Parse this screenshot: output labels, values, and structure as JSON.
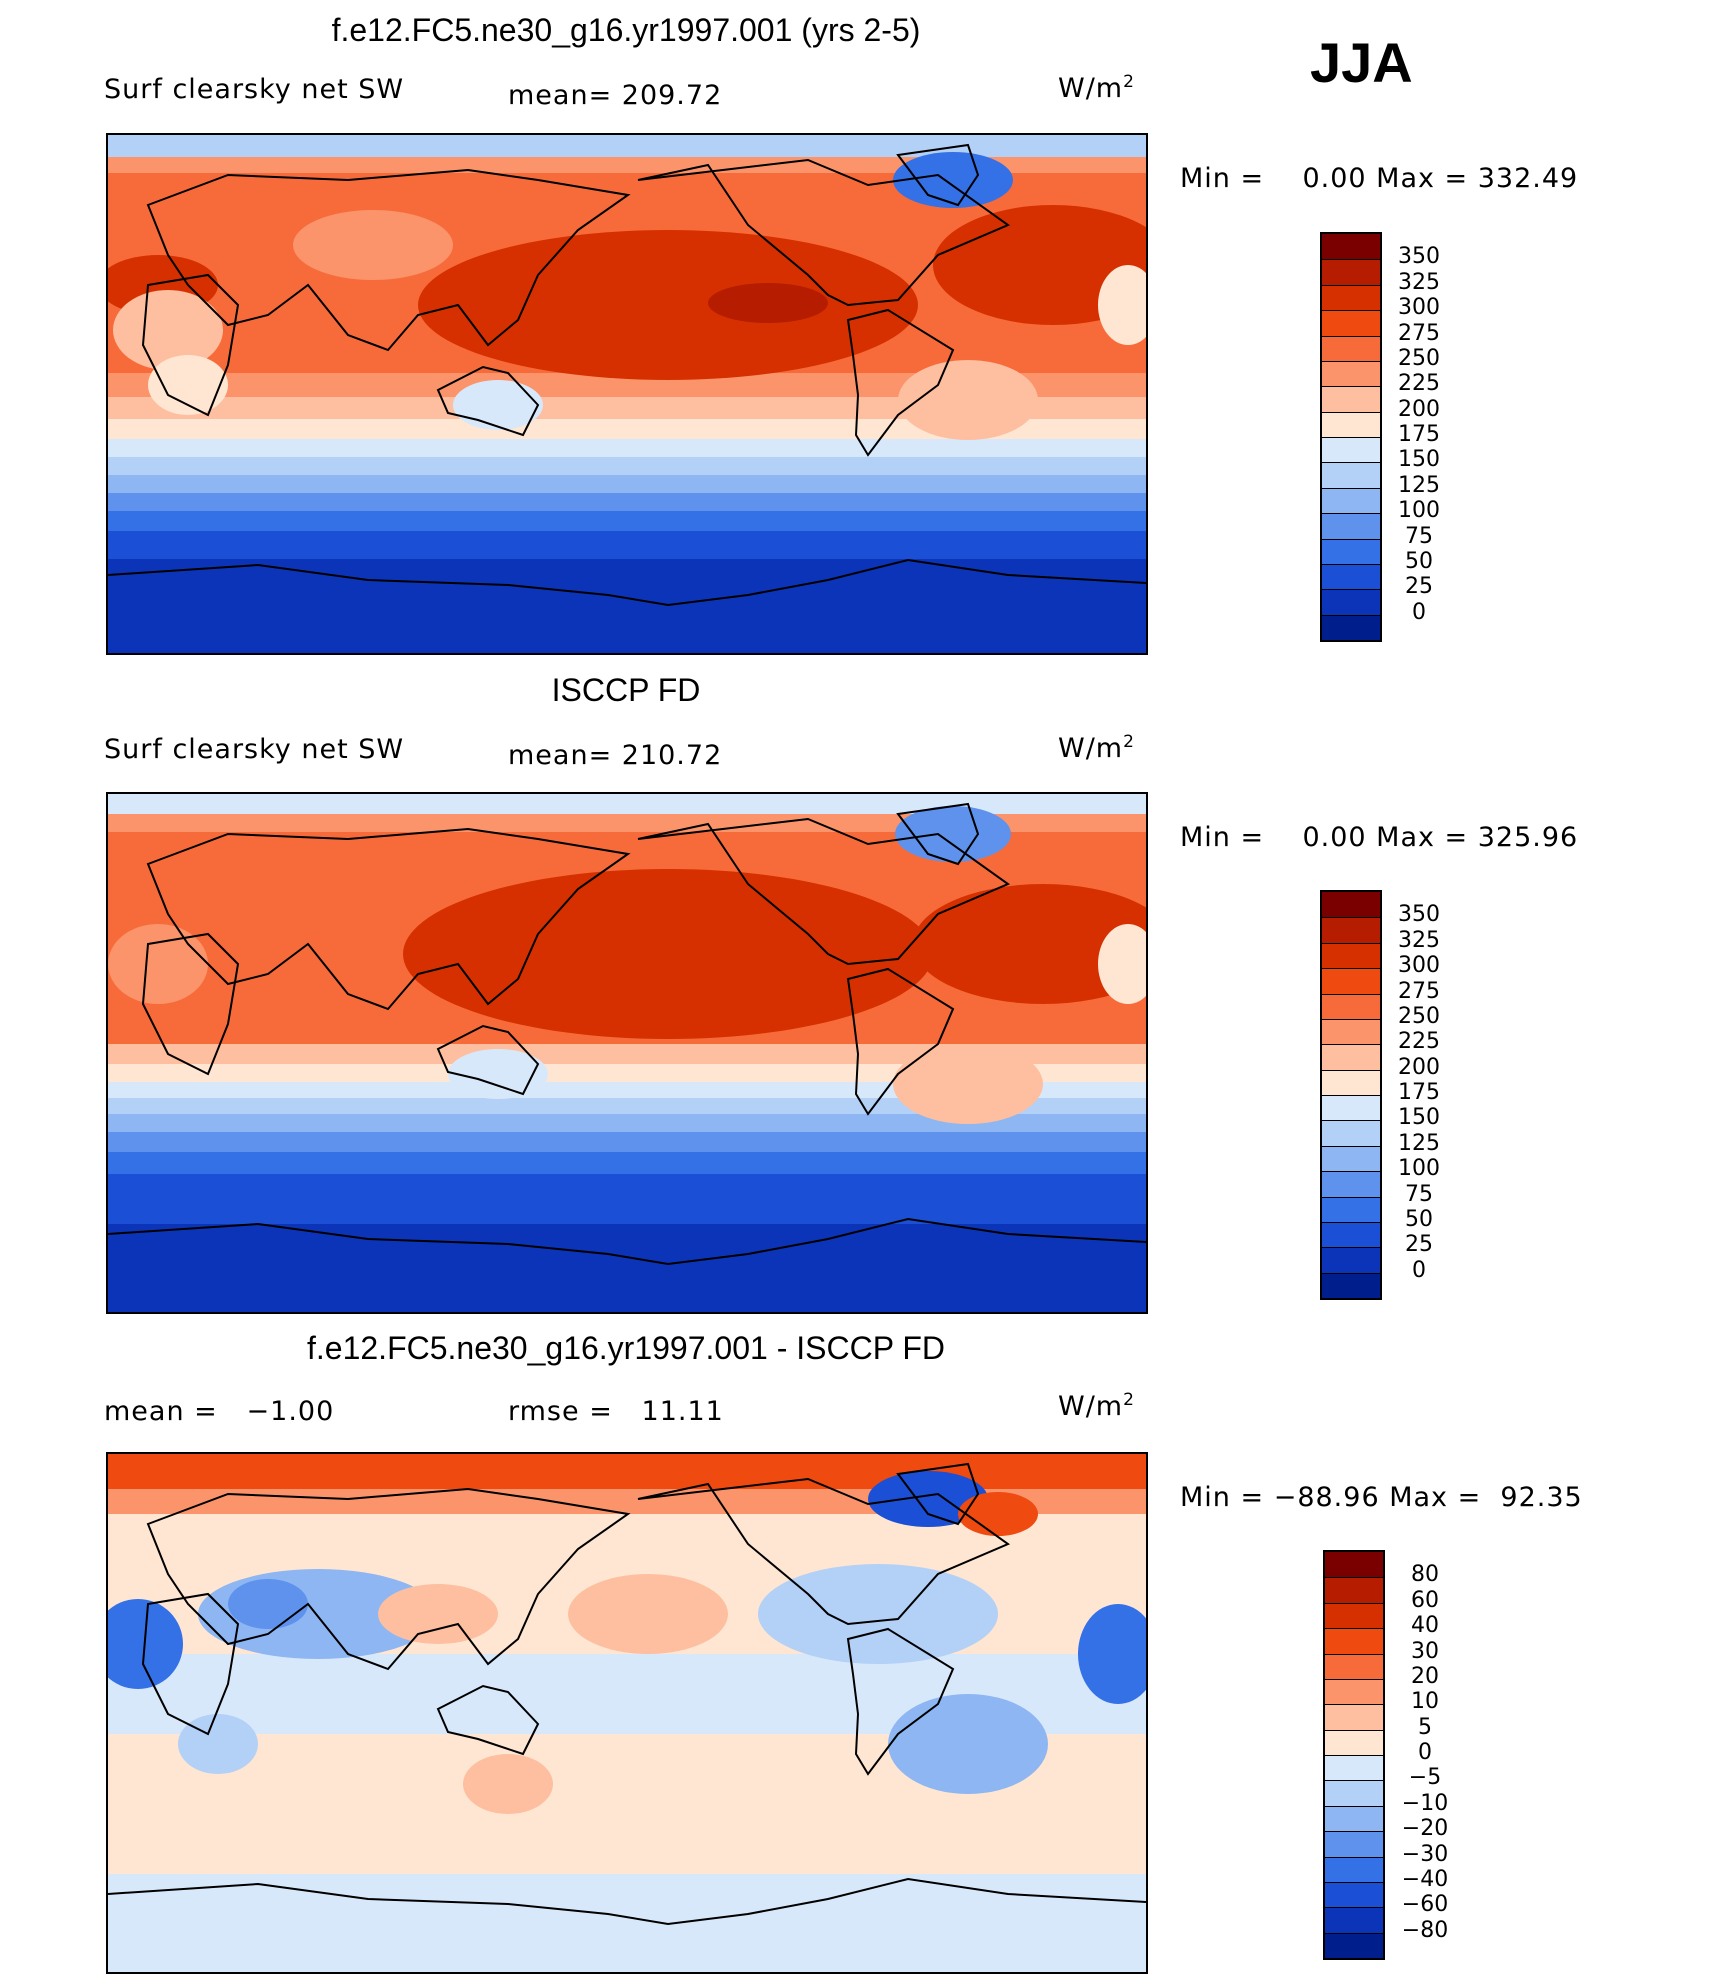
{
  "season": "JJA",
  "panels": [
    {
      "title": "f.e12.FC5.ne30_g16.yr1997.001 (yrs 2-5)",
      "left_label": "Surf clearsky net SW",
      "stat": "mean= 209.72",
      "units_base": "W/m",
      "units_exp": "2",
      "minmax": "Min =    0.00 Max = 332.49",
      "colorbar": {
        "labels": [
          "350",
          "325",
          "300",
          "275",
          "250",
          "225",
          "200",
          "175",
          "150",
          "125",
          "100",
          "75",
          "50",
          "25",
          "0"
        ],
        "colors": [
          "#7a0000",
          "#b51c00",
          "#d63000",
          "#ef4a10",
          "#f76b3a",
          "#fb946b",
          "#fdbfa0",
          "#fee6d2",
          "#d8e8fb",
          "#b3d0f7",
          "#8db6f2",
          "#5e92ec",
          "#3470e6",
          "#1a4fd6",
          "#0b34b8",
          "#001e8c"
        ]
      }
    },
    {
      "title": "ISCCP FD",
      "left_label": "Surf clearsky net SW",
      "stat": "mean= 210.72",
      "units_base": "W/m",
      "units_exp": "2",
      "minmax": "Min =    0.00 Max = 325.96",
      "colorbar": {
        "labels": [
          "350",
          "325",
          "300",
          "275",
          "250",
          "225",
          "200",
          "175",
          "150",
          "125",
          "100",
          "75",
          "50",
          "25",
          "0"
        ],
        "colors": [
          "#7a0000",
          "#b51c00",
          "#d63000",
          "#ef4a10",
          "#f76b3a",
          "#fb946b",
          "#fdbfa0",
          "#fee6d2",
          "#d8e8fb",
          "#b3d0f7",
          "#8db6f2",
          "#5e92ec",
          "#3470e6",
          "#1a4fd6",
          "#0b34b8",
          "#001e8c"
        ]
      }
    },
    {
      "title": "f.e12.FC5.ne30_g16.yr1997.001 - ISCCP FD",
      "left_label": "mean =   −1.00",
      "stat": "rmse =   11.11",
      "units_base": "W/m",
      "units_exp": "2",
      "minmax": "Min = −88.96 Max =  92.35",
      "colorbar": {
        "labels": [
          "80",
          "60",
          "40",
          "30",
          "20",
          "10",
          "5",
          "0",
          "−5",
          "−10",
          "−20",
          "−30",
          "−40",
          "−60",
          "−80"
        ],
        "colors": [
          "#7a0000",
          "#b51c00",
          "#d63000",
          "#ef4a10",
          "#f76b3a",
          "#fb946b",
          "#fdbfa0",
          "#fee6d2",
          "#d8e8fb",
          "#b3d0f7",
          "#8db6f2",
          "#5e92ec",
          "#3470e6",
          "#1a4fd6",
          "#0b34b8",
          "#001e8c"
        ]
      }
    }
  ]
}
